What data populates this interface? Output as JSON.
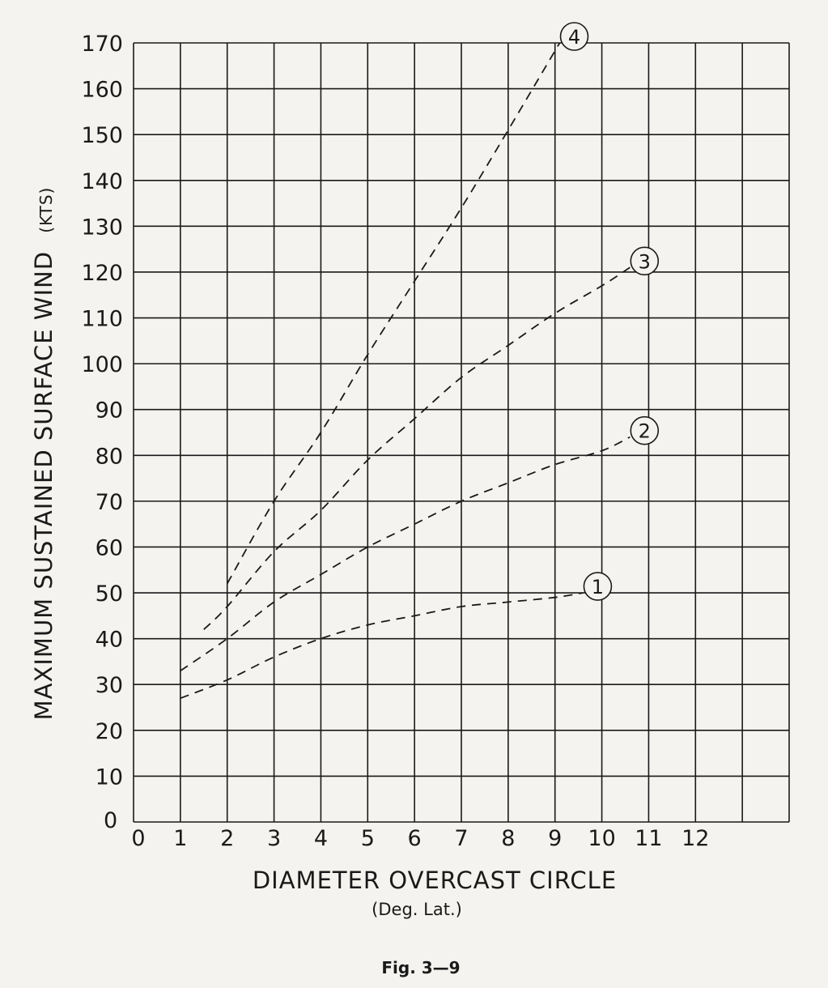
{
  "chart_data": {
    "type": "line",
    "title": "",
    "xlabel": "DIAMETER OVERCAST CIRCLE",
    "xlabel_sub": "(Deg. Lat.)",
    "ylabel": "MAXIMUM SUSTAINED SURFACE WIND",
    "ylabel_units": "(KTS)",
    "caption": "Fig. 3—9",
    "y_origin_label": "0",
    "xlim": [
      0,
      14
    ],
    "ylim": [
      0,
      170
    ],
    "x_ticks": [
      0,
      1,
      2,
      3,
      4,
      5,
      6,
      7,
      8,
      9,
      10,
      11,
      12
    ],
    "y_ticks": [
      10,
      20,
      30,
      40,
      50,
      60,
      70,
      80,
      90,
      100,
      110,
      120,
      130,
      140,
      150,
      160,
      170
    ],
    "grid": true,
    "series": [
      {
        "marker": "①",
        "label": "1",
        "x": [
          1,
          2,
          3,
          4,
          5,
          6,
          7,
          8,
          9,
          9.6
        ],
        "y": [
          27,
          31,
          36,
          40,
          43,
          45,
          47,
          48,
          49,
          50
        ]
      },
      {
        "marker": "②",
        "label": "2",
        "x": [
          1,
          2,
          3,
          4,
          5,
          6,
          7,
          8,
          9,
          10,
          10.6
        ],
        "y": [
          33,
          40,
          48,
          54,
          60,
          65,
          70,
          74,
          78,
          81,
          84
        ]
      },
      {
        "marker": "③",
        "label": "3",
        "x": [
          1.5,
          2,
          3,
          4,
          5,
          6,
          7,
          8,
          9,
          10,
          10.6
        ],
        "y": [
          42,
          47,
          59,
          68,
          79,
          88,
          97,
          104,
          111,
          117,
          121
        ]
      },
      {
        "marker": "④",
        "label": "4",
        "x": [
          2,
          3,
          4,
          5,
          6,
          7,
          8,
          9.1
        ],
        "y": [
          52,
          70,
          85,
          102,
          118,
          134,
          151,
          170
        ]
      }
    ]
  }
}
